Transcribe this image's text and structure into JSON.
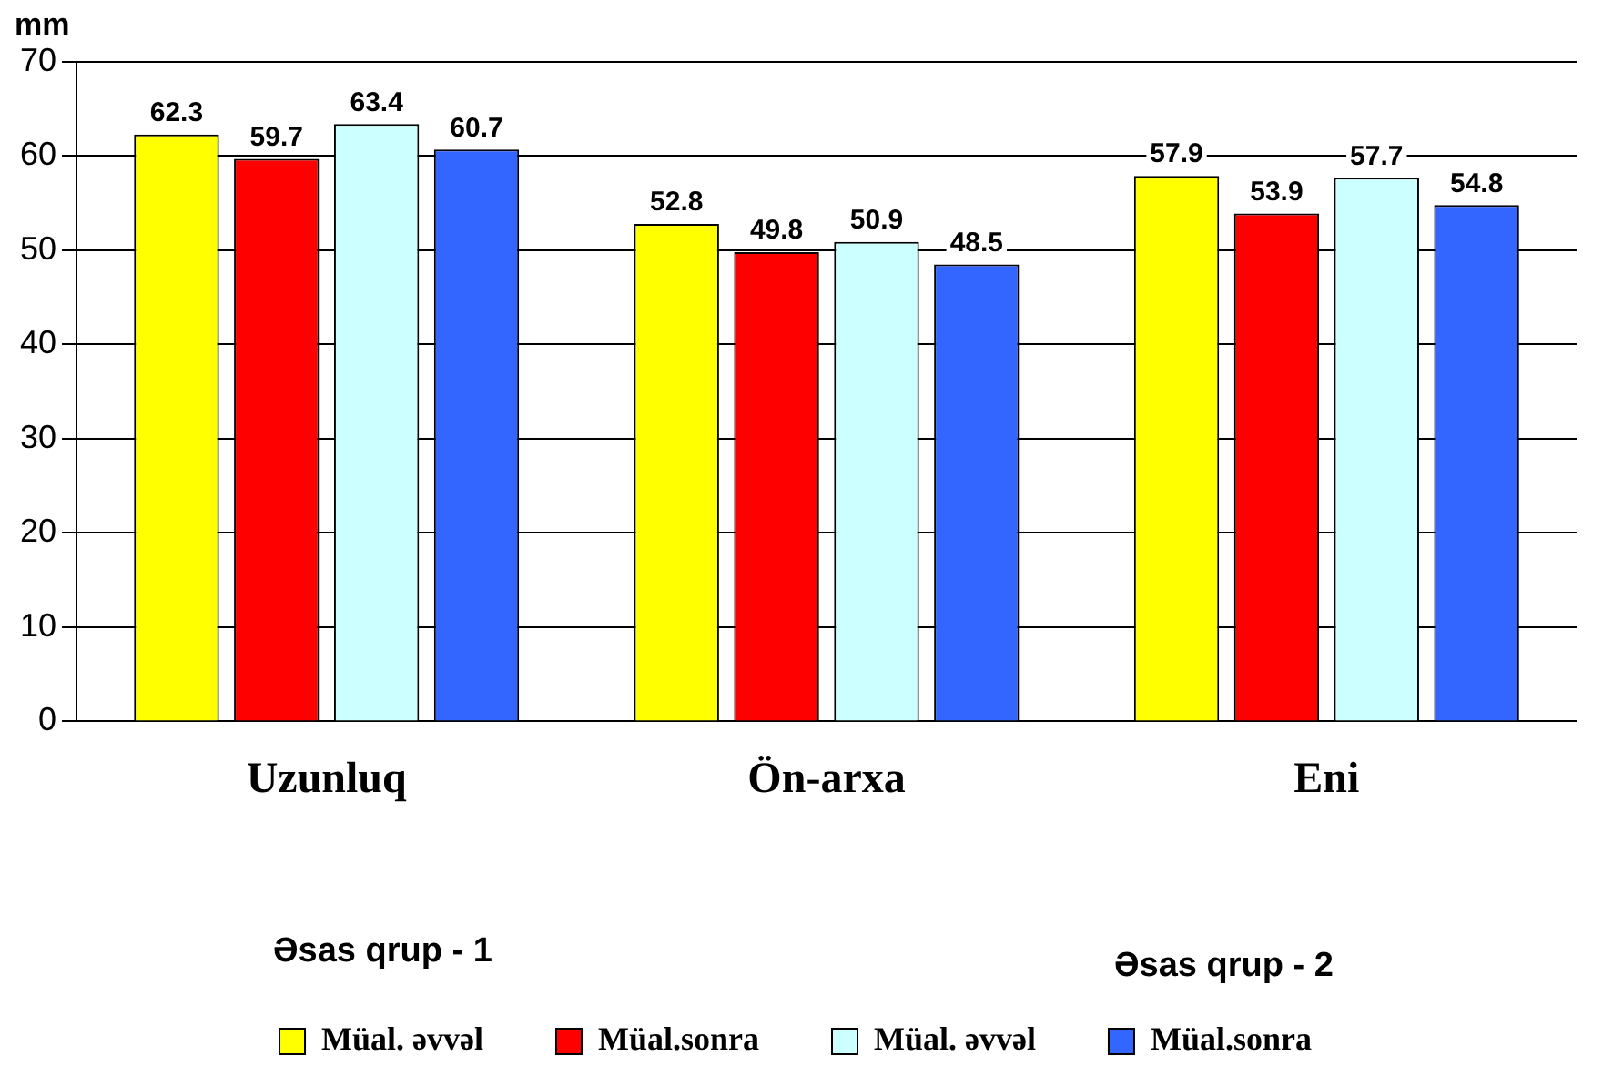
{
  "chart_data": {
    "type": "bar",
    "ylabel": "mm",
    "categories": [
      "Uzunluq",
      "Ön-arxa",
      "Eni"
    ],
    "series": [
      {
        "name": "Müal. əvvəl",
        "color": "#ffff00",
        "values": [
          62.3,
          52.8,
          57.9
        ]
      },
      {
        "name": "Müal.sonra",
        "color": "#ff0000",
        "values": [
          59.7,
          49.8,
          53.9
        ]
      },
      {
        "name": "Müal. əvvəl",
        "color": "#ccffff",
        "values": [
          63.4,
          50.9,
          57.7
        ]
      },
      {
        "name": "Müal.sonra",
        "color": "#3366ff",
        "values": [
          60.7,
          48.5,
          54.8
        ]
      }
    ],
    "ylim": [
      0,
      70
    ],
    "yticks": [
      0,
      10,
      20,
      30,
      40,
      50,
      60,
      70
    ],
    "grid": "y",
    "legend": "bottom",
    "data_labels": true,
    "annotations": [
      "Əsas qrup - 1",
      "Əsas qrup - 2"
    ]
  }
}
